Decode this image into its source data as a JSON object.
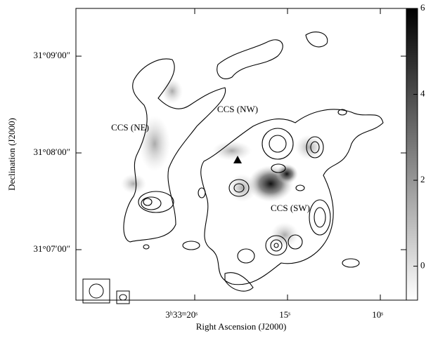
{
  "chart_data": {
    "type": "contour",
    "x_label": "Right Ascension (J2000)",
    "y_label": "Declination (J2000)",
    "xlim": [
      26.4,
      8.6
    ],
    "xticks": [
      {
        "value": 20,
        "label": "3ʰ33ᵐ20ˢ"
      },
      {
        "value": 15,
        "label": "15ˢ"
      },
      {
        "value": 10,
        "label": "10ˢ"
      }
    ],
    "ylim": [
      388.7,
      569.6
    ],
    "yticks": [
      {
        "value": 540,
        "label": "31°09′00″"
      },
      {
        "value": 480,
        "label": "31°08′00″"
      },
      {
        "value": 420,
        "label": "31°07′00″"
      }
    ],
    "annotations": [
      "CCS (NE)",
      "CCS (NW)",
      "CCS (SW)"
    ],
    "colorbar_lim": [
      -0.79,
      6
    ],
    "colorbar_ticks": [
      0,
      2,
      4,
      6
    ]
  }
}
